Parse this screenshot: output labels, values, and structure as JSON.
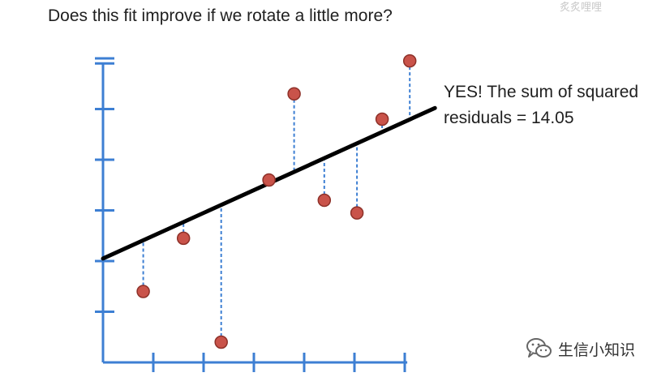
{
  "header": {
    "question": "Does this fit improve if we rotate a little more?"
  },
  "annotation": {
    "line1": "YES! The sum of squared",
    "line2": "residuals = 14.05"
  },
  "watermark": {
    "brand": "生信小知识",
    "icon": "wechat-icon",
    "top_text": "炙炙哩哩"
  },
  "colors": {
    "axis": "#3d7fd3",
    "point_fill": "#c9534a",
    "point_stroke": "#8e3129",
    "fit_line": "#000000",
    "residual": "#3d7fd3"
  },
  "chart_data": {
    "type": "scatter",
    "title": "",
    "xlabel": "",
    "ylabel": "",
    "xlim": [
      0,
      6
    ],
    "ylim": [
      0,
      6
    ],
    "x_ticks": [
      1,
      2,
      3,
      4,
      5,
      6
    ],
    "y_ticks": [
      1,
      2,
      3,
      4,
      5,
      6
    ],
    "grid": false,
    "points": [
      {
        "x": 0.8,
        "y": 1.4
      },
      {
        "x": 1.6,
        "y": 2.45
      },
      {
        "x": 2.35,
        "y": 0.4
      },
      {
        "x": 3.3,
        "y": 3.6
      },
      {
        "x": 3.8,
        "y": 5.3
      },
      {
        "x": 4.4,
        "y": 3.2
      },
      {
        "x": 5.05,
        "y": 2.95
      },
      {
        "x": 5.55,
        "y": 4.8
      },
      {
        "x": 6.1,
        "y": 5.95
      }
    ],
    "fit_line": {
      "intercept": 2.05,
      "slope": 0.45,
      "x_start": 0,
      "x_end": 6.6
    },
    "residuals_shown": true,
    "sum_of_squared_residuals": 14.05
  }
}
